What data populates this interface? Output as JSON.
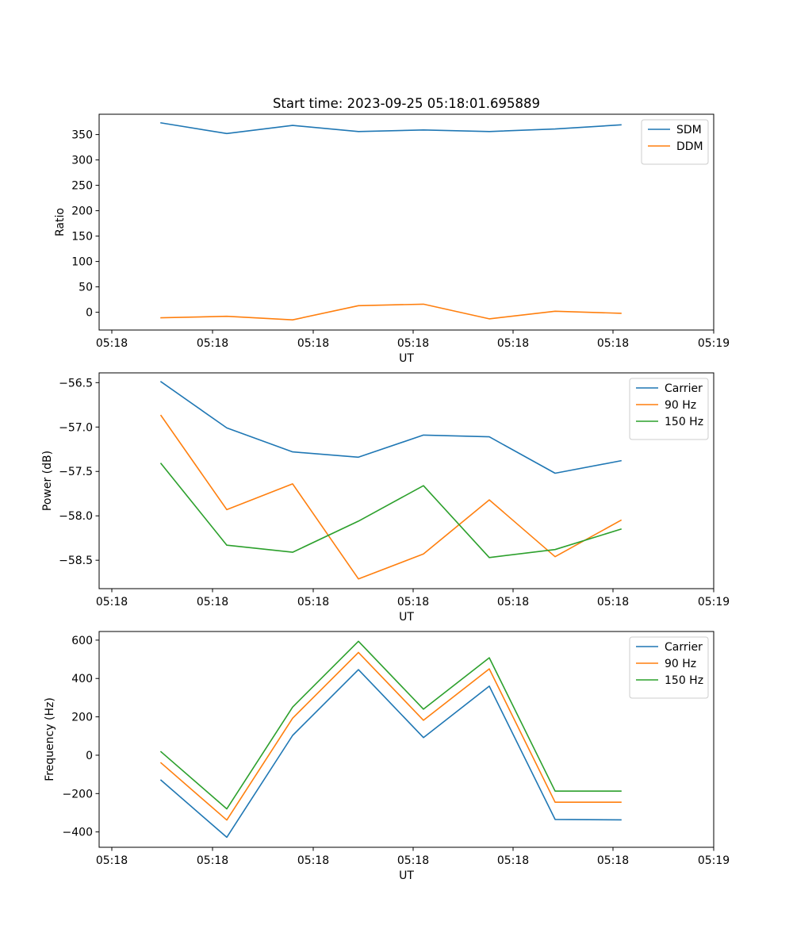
{
  "figure_title": "Start time: 2023-09-25 05:18:01.695889",
  "chart_data": [
    {
      "type": "line",
      "title": "Start time: 2023-09-25 05:18:01.695889",
      "xlabel": "UT",
      "ylabel": "Ratio",
      "x_tick_labels": [
        "05:18",
        "05:18",
        "05:18",
        "05:18",
        "05:18",
        "05:18",
        "05:19"
      ],
      "y_ticks": [
        "0",
        "50",
        "100",
        "150",
        "200",
        "250",
        "300",
        "350"
      ],
      "ylim": [
        -35,
        390
      ],
      "legend_position": "top-right",
      "series": [
        {
          "name": "SDM",
          "color": "#1f77b4",
          "values": [
            373,
            352,
            368,
            356,
            359,
            356,
            361,
            369
          ]
        },
        {
          "name": "DDM",
          "color": "#ff7f0e",
          "values": [
            -11,
            -8,
            -15,
            13,
            16,
            -13,
            2,
            -2
          ]
        }
      ]
    },
    {
      "type": "line",
      "title": "",
      "xlabel": "UT",
      "ylabel": "Power (dB)",
      "x_tick_labels": [
        "05:18",
        "05:18",
        "05:18",
        "05:18",
        "05:18",
        "05:18",
        "05:19"
      ],
      "y_ticks": [
        "−58.5",
        "−58.0",
        "−57.5",
        "−57.0",
        "−56.5"
      ],
      "ylim": [
        -58.82,
        -56.39
      ],
      "legend_position": "top-right",
      "series": [
        {
          "name": "Carrier",
          "color": "#1f77b4",
          "values": [
            -56.49,
            -57.01,
            -57.28,
            -57.34,
            -57.09,
            -57.11,
            -57.52,
            -57.38
          ]
        },
        {
          "name": "90 Hz",
          "color": "#ff7f0e",
          "values": [
            -56.87,
            -57.93,
            -57.64,
            -58.71,
            -58.43,
            -57.82,
            -58.46,
            -58.05
          ]
        },
        {
          "name": "150 Hz",
          "color": "#2ca02c",
          "values": [
            -57.41,
            -58.33,
            -58.41,
            -58.06,
            -57.66,
            -58.47,
            -58.38,
            -58.15
          ]
        }
      ]
    },
    {
      "type": "line",
      "title": "",
      "xlabel": "UT",
      "ylabel": "Frequency (Hz)",
      "x_tick_labels": [
        "05:18",
        "05:18",
        "05:18",
        "05:18",
        "05:18",
        "05:18",
        "05:19"
      ],
      "y_ticks": [
        "−400",
        "−200",
        "0",
        "200",
        "400",
        "600"
      ],
      "ylim": [
        -480,
        645
      ],
      "legend_position": "top-right",
      "series": [
        {
          "name": "Carrier",
          "color": "#1f77b4",
          "values": [
            -130,
            -428,
            103,
            446,
            92,
            360,
            -335,
            -337
          ]
        },
        {
          "name": "90 Hz",
          "color": "#ff7f0e",
          "values": [
            -40,
            -338,
            193,
            536,
            182,
            450,
            -245,
            -245
          ]
        },
        {
          "name": "150 Hz",
          "color": "#2ca02c",
          "values": [
            18,
            -280,
            251,
            594,
            240,
            508,
            -187,
            -187
          ]
        }
      ]
    }
  ]
}
